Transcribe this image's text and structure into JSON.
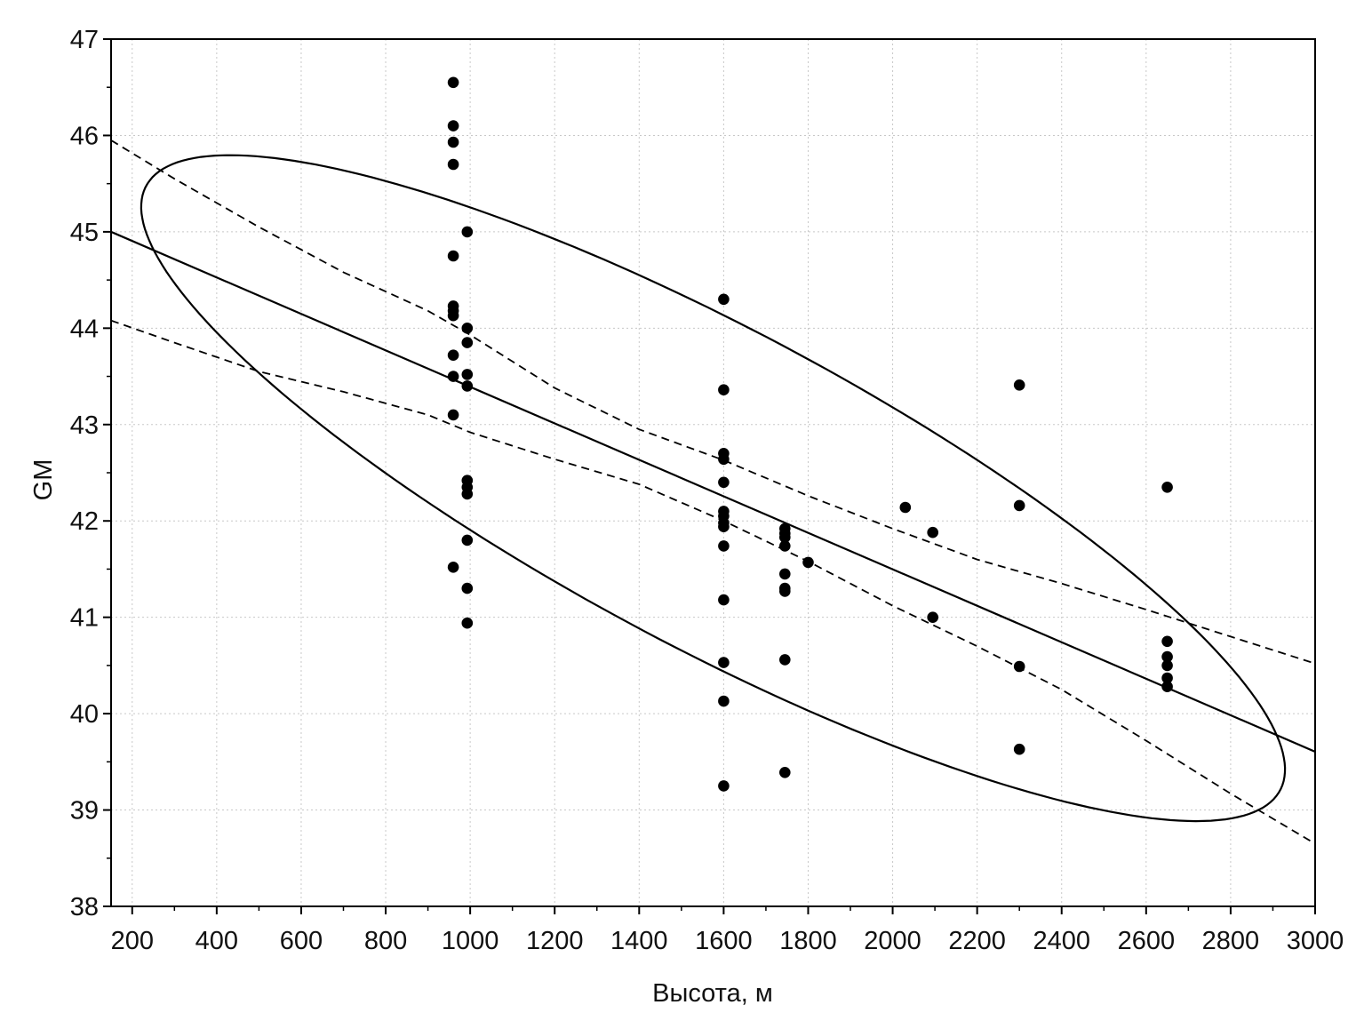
{
  "chart_data": {
    "type": "scatter",
    "xlabel": "Высота, м",
    "ylabel": "GM",
    "xlim": [
      150,
      3000
    ],
    "ylim": [
      38,
      47
    ],
    "x_ticks": [
      "200",
      "400",
      "600",
      "800",
      "1000",
      "1200",
      "1400",
      "1600",
      "1800",
      "2000",
      "2200",
      "2400",
      "2600",
      "2800",
      "3000"
    ],
    "y_ticks": [
      "38",
      "39",
      "40",
      "41",
      "42",
      "43",
      "44",
      "45",
      "46",
      "47"
    ],
    "grid": true,
    "points": [
      [
        960,
        46.55
      ],
      [
        960,
        46.1
      ],
      [
        960,
        45.93
      ],
      [
        960,
        45.7
      ],
      [
        960,
        44.75
      ],
      [
        960,
        44.23
      ],
      [
        960,
        44.18
      ],
      [
        960,
        44.13
      ],
      [
        960,
        43.72
      ],
      [
        960,
        43.5
      ],
      [
        960,
        43.1
      ],
      [
        960,
        41.52
      ],
      [
        993,
        45.0
      ],
      [
        993,
        44.0
      ],
      [
        993,
        43.85
      ],
      [
        993,
        43.52
      ],
      [
        993,
        43.4
      ],
      [
        993,
        42.42
      ],
      [
        993,
        42.35
      ],
      [
        993,
        42.28
      ],
      [
        993,
        41.8
      ],
      [
        993,
        41.3
      ],
      [
        993,
        40.94
      ],
      [
        1600,
        44.3
      ],
      [
        1600,
        43.36
      ],
      [
        1600,
        42.7
      ],
      [
        1600,
        42.64
      ],
      [
        1600,
        42.4
      ],
      [
        1600,
        42.1
      ],
      [
        1600,
        42.05
      ],
      [
        1600,
        41.98
      ],
      [
        1600,
        41.94
      ],
      [
        1600,
        41.74
      ],
      [
        1600,
        41.18
      ],
      [
        1600,
        40.53
      ],
      [
        1600,
        40.13
      ],
      [
        1600,
        39.25
      ],
      [
        1745,
        41.92
      ],
      [
        1745,
        41.87
      ],
      [
        1745,
        41.83
      ],
      [
        1745,
        41.74
      ],
      [
        1745,
        41.45
      ],
      [
        1745,
        41.3
      ],
      [
        1745,
        41.27
      ],
      [
        1745,
        40.56
      ],
      [
        1745,
        39.39
      ],
      [
        1800,
        41.57
      ],
      [
        2030,
        42.14
      ],
      [
        2095,
        41.88
      ],
      [
        2095,
        41.0
      ],
      [
        2300,
        43.41
      ],
      [
        2300,
        42.16
      ],
      [
        2300,
        40.49
      ],
      [
        2300,
        39.63
      ],
      [
        2650,
        42.35
      ],
      [
        2650,
        40.75
      ],
      [
        2650,
        40.59
      ],
      [
        2650,
        40.5
      ],
      [
        2650,
        40.37
      ],
      [
        2650,
        40.28
      ]
    ],
    "regression": {
      "slope": -0.001893,
      "intercept": 45.284
    },
    "confidence_upper": [
      [
        150,
        45.95
      ],
      [
        300,
        45.55
      ],
      [
        500,
        45.05
      ],
      [
        700,
        44.58
      ],
      [
        900,
        44.18
      ],
      [
        1000,
        43.93
      ],
      [
        1200,
        43.38
      ],
      [
        1400,
        42.95
      ],
      [
        1600,
        42.63
      ],
      [
        1800,
        42.26
      ],
      [
        2000,
        41.92
      ],
      [
        2200,
        41.6
      ],
      [
        2400,
        41.35
      ],
      [
        2600,
        41.08
      ],
      [
        2800,
        40.8
      ],
      [
        3000,
        40.52
      ]
    ],
    "confidence_lower": [
      [
        150,
        44.08
      ],
      [
        300,
        43.85
      ],
      [
        500,
        43.55
      ],
      [
        700,
        43.34
      ],
      [
        900,
        43.1
      ],
      [
        1000,
        42.92
      ],
      [
        1200,
        42.64
      ],
      [
        1400,
        42.38
      ],
      [
        1600,
        42.0
      ],
      [
        1800,
        41.58
      ],
      [
        2000,
        41.12
      ],
      [
        2200,
        40.7
      ],
      [
        2400,
        40.25
      ],
      [
        2600,
        39.72
      ],
      [
        2800,
        39.17
      ],
      [
        3000,
        38.65
      ]
    ],
    "ellipse": {
      "center": [
        1575,
        42.34
      ],
      "axis1": [
        1347.6,
        -3.081
      ],
      "axis2": [
        128.2,
        1.564
      ]
    }
  }
}
